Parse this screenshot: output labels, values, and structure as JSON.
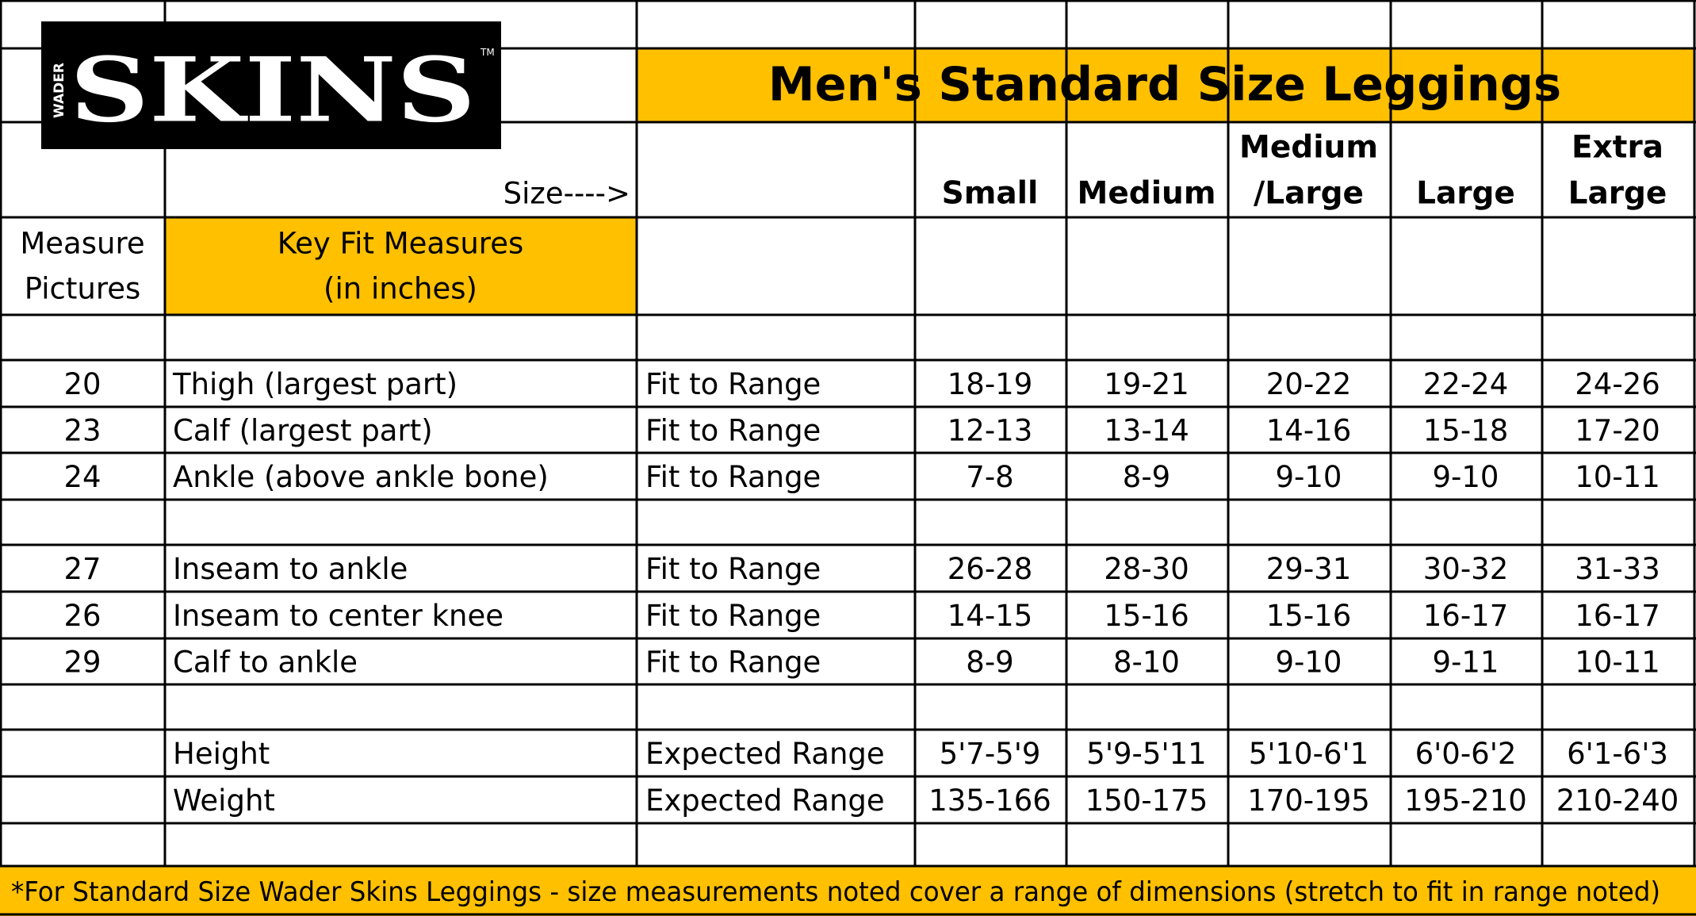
{
  "logo": {
    "prefix": "WADER",
    "brand": "SKINS",
    "trademark": "TM"
  },
  "title": "Men's Standard Size Leggings",
  "size_label": "Size---->",
  "sizes": [
    [
      "Small"
    ],
    [
      "Medium"
    ],
    [
      "Medium",
      "/Large"
    ],
    [
      "Large"
    ],
    [
      "Extra",
      "Large"
    ]
  ],
  "column_headers": {
    "pictures": [
      "Measure",
      "Pictures"
    ],
    "measures": [
      "Key Fit Measures",
      "(in inches)"
    ]
  },
  "rows": [
    {
      "picture": "20",
      "measure": "Thigh (largest part)",
      "kind": "Fit to Range",
      "values": [
        "18-19",
        "19-21",
        "20-22",
        "22-24",
        "24-26"
      ]
    },
    {
      "picture": "23",
      "measure": "Calf (largest part)",
      "kind": "Fit to Range",
      "values": [
        "12-13",
        "13-14",
        "14-16",
        "15-18",
        "17-20"
      ]
    },
    {
      "picture": "24",
      "measure": "Ankle (above ankle bone)",
      "kind": "Fit to Range",
      "values": [
        "7-8",
        "8-9",
        "9-10",
        "9-10",
        "10-11"
      ]
    },
    {
      "picture": "27",
      "measure": "Inseam to ankle",
      "kind": "Fit to Range",
      "values": [
        "26-28",
        "28-30",
        "29-31",
        "30-32",
        "31-33"
      ]
    },
    {
      "picture": "26",
      "measure": "Inseam to center knee",
      "kind": "Fit to Range",
      "values": [
        "14-15",
        "15-16",
        "15-16",
        "16-17",
        "16-17"
      ]
    },
    {
      "picture": "29",
      "measure": "Calf to ankle",
      "kind": "Fit to Range",
      "values": [
        "8-9",
        "8-10",
        "9-10",
        "9-11",
        "10-11"
      ]
    },
    {
      "measure": "Height",
      "kind": "Expected Range",
      "values": [
        "5'7-5'9",
        "5'9-5'11",
        "5'10-6'1",
        "6'0-6'2",
        "6'1-6'3"
      ]
    },
    {
      "measure": "Weight",
      "kind": "Expected Range",
      "values": [
        "135-166",
        "150-175",
        "170-195",
        "195-210",
        "210-240"
      ]
    }
  ],
  "footnote": "*For Standard Size Wader Skins Leggings - size measurements noted cover a range of dimensions (stretch to fit in range noted)"
}
